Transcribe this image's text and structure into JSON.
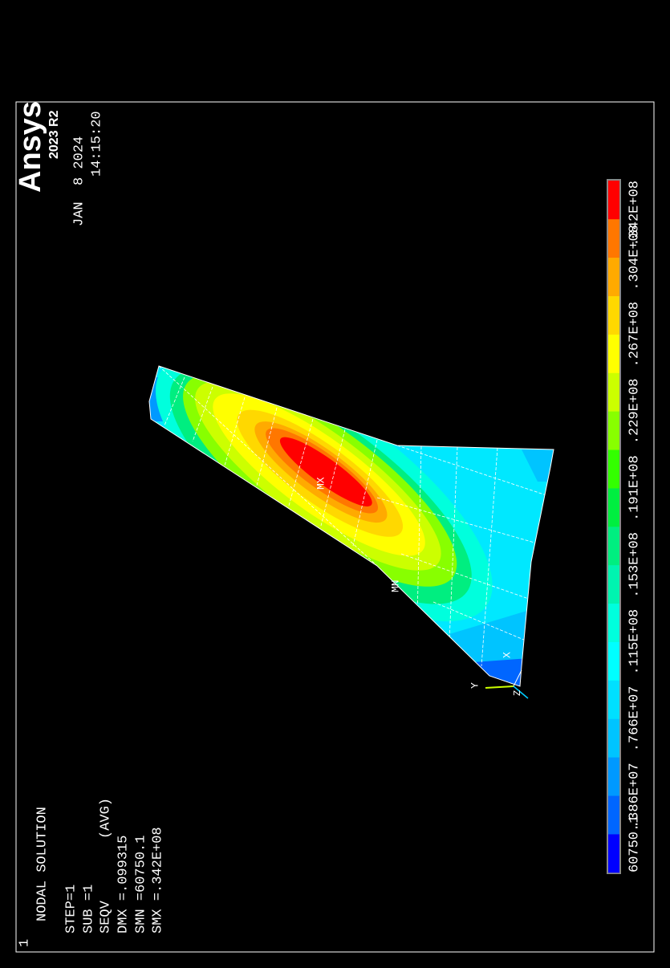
{
  "window_number": "1",
  "header": {
    "lines": [
      "NODAL SOLUTION",
      "STEP=1",
      "SUB =1",
      "SEQV",
      "(AVG)",
      "DMX =.099315",
      "SMN =60750.1",
      "SMX =.342E+08"
    ]
  },
  "brand": {
    "name": "Ansys",
    "version": "2023 R2",
    "date": "JAN  8 2024",
    "time": "14:15:20"
  },
  "legend": {
    "labels": [
      "60750.1",
      ".386E+07",
      ".766E+07",
      ".115E+08",
      ".153E+08",
      ".191E+08",
      ".229E+08",
      ".267E+08",
      ".304E+08",
      ".342E+08"
    ],
    "colors": [
      "#0000ff",
      "#0066ff",
      "#0099ff",
      "#00c4ff",
      "#00e0ff",
      "#00ffff",
      "#00ffdd",
      "#00f4b0",
      "#00ee80",
      "#00ee40",
      "#33ff00",
      "#88ff00",
      "#ccff00",
      "#ffff00",
      "#ffd800",
      "#ffaa00",
      "#ff7700",
      "#ff0000"
    ]
  },
  "markers": {
    "max": "MX",
    "min": "MN"
  },
  "triad": {
    "y": "Y",
    "x": "X",
    "z": "Z"
  }
}
